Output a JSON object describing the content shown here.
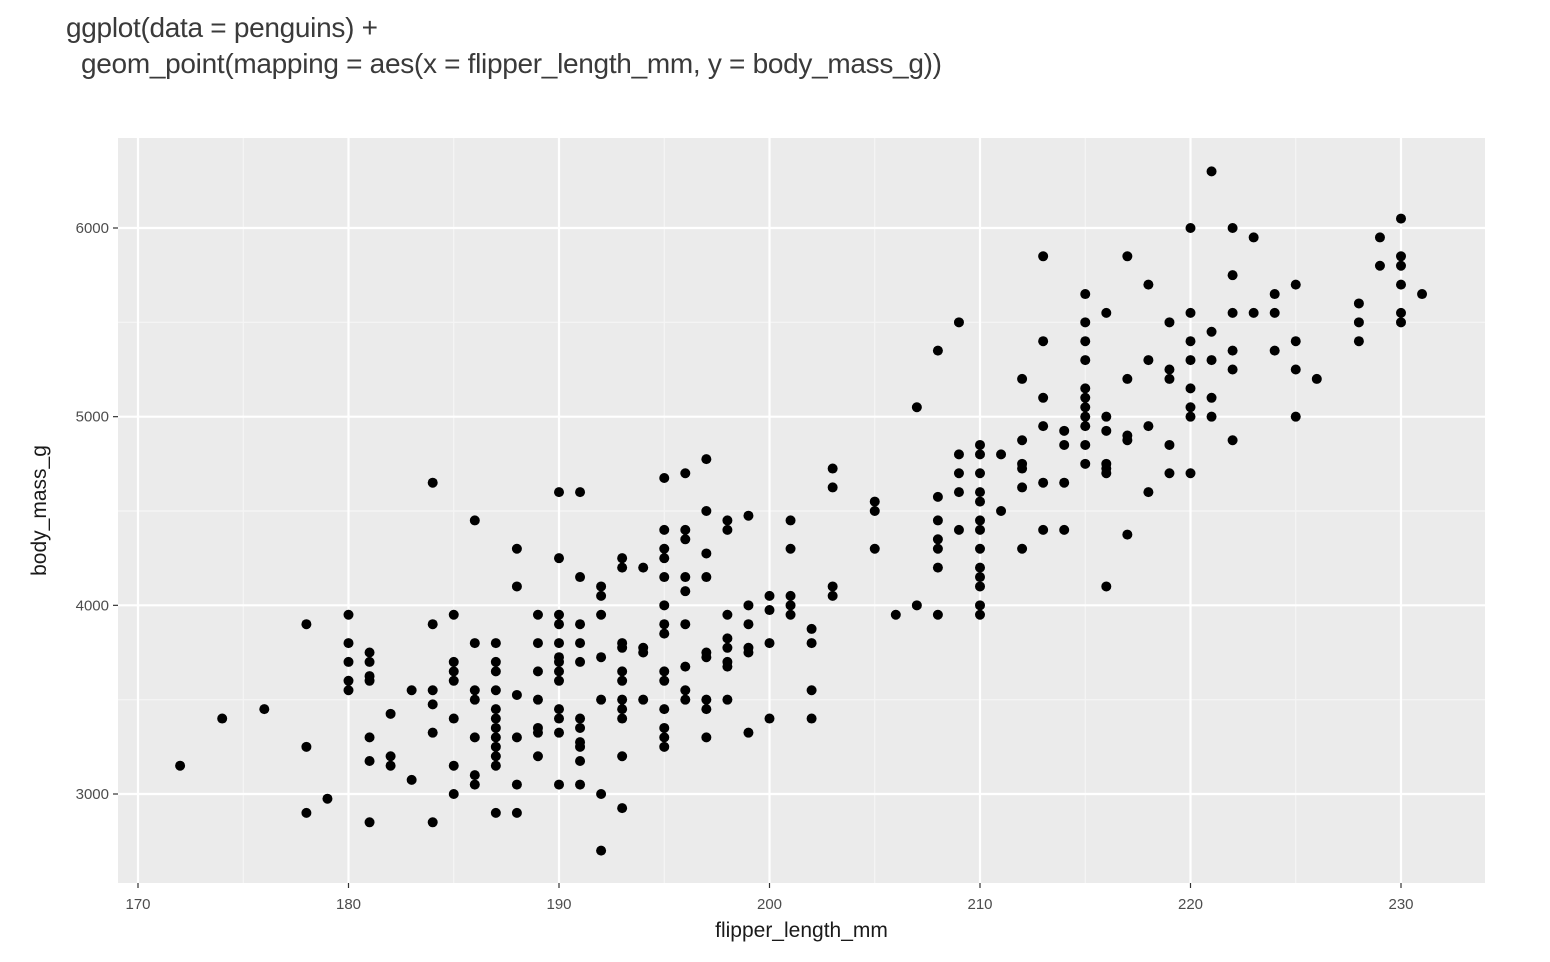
{
  "code": {
    "line1": "ggplot(data = penguins) +",
    "line2": "geom_point(mapping = aes(x = flipper_length_mm, y = body_mass_g))"
  },
  "colors": {
    "panel_background": "#ebebeb",
    "grid_major": "#ffffff",
    "grid_minor": "#f5f5f5",
    "point": "#000000"
  },
  "chart_data": {
    "type": "scatter",
    "title": "",
    "xlabel": "flipper_length_mm",
    "ylabel": "body_mass_g",
    "xlim": [
      169,
      234
    ],
    "ylim": [
      2530,
      6500
    ],
    "xticks": [
      170,
      180,
      190,
      200,
      210,
      220,
      230
    ],
    "yticks": [
      3000,
      4000,
      5000,
      6000
    ],
    "x_tick_labels": [
      "170",
      "180",
      "190",
      "200",
      "210",
      "220",
      "230"
    ],
    "y_tick_labels": [
      "3000",
      "4000",
      "5000",
      "6000"
    ],
    "grid": true,
    "points": [
      [
        172,
        3150
      ],
      [
        174,
        3400
      ],
      [
        176,
        3450
      ],
      [
        178,
        3900
      ],
      [
        178,
        3250
      ],
      [
        178,
        2900
      ],
      [
        179,
        2975
      ],
      [
        180,
        3950
      ],
      [
        180,
        3800
      ],
      [
        180,
        3700
      ],
      [
        180,
        3600
      ],
      [
        180,
        3550
      ],
      [
        181,
        3750
      ],
      [
        181,
        3700
      ],
      [
        181,
        3625
      ],
      [
        181,
        3600
      ],
      [
        181,
        3300
      ],
      [
        181,
        3175
      ],
      [
        181,
        2850
      ],
      [
        182,
        3425
      ],
      [
        182,
        3200
      ],
      [
        182,
        3150
      ],
      [
        183,
        3550
      ],
      [
        183,
        3075
      ],
      [
        184,
        4650
      ],
      [
        184,
        3900
      ],
      [
        184,
        3550
      ],
      [
        184,
        3475
      ],
      [
        184,
        3325
      ],
      [
        184,
        2850
      ],
      [
        185,
        3950
      ],
      [
        185,
        3700
      ],
      [
        185,
        3650
      ],
      [
        185,
        3600
      ],
      [
        185,
        3400
      ],
      [
        185,
        3150
      ],
      [
        185,
        3000
      ],
      [
        186,
        4450
      ],
      [
        186,
        3800
      ],
      [
        186,
        3550
      ],
      [
        186,
        3500
      ],
      [
        186,
        3300
      ],
      [
        186,
        3100
      ],
      [
        186,
        3050
      ],
      [
        187,
        3800
      ],
      [
        187,
        3700
      ],
      [
        187,
        3650
      ],
      [
        187,
        3550
      ],
      [
        187,
        3450
      ],
      [
        187,
        3400
      ],
      [
        187,
        3350
      ],
      [
        187,
        3300
      ],
      [
        187,
        3250
      ],
      [
        187,
        3200
      ],
      [
        187,
        3150
      ],
      [
        187,
        2900
      ],
      [
        188,
        4300
      ],
      [
        188,
        4100
      ],
      [
        188,
        3525
      ],
      [
        188,
        3300
      ],
      [
        188,
        3050
      ],
      [
        188,
        2900
      ],
      [
        189,
        3950
      ],
      [
        189,
        3800
      ],
      [
        189,
        3650
      ],
      [
        189,
        3500
      ],
      [
        189,
        3350
      ],
      [
        189,
        3325
      ],
      [
        189,
        3200
      ],
      [
        190,
        4600
      ],
      [
        190,
        4250
      ],
      [
        190,
        3950
      ],
      [
        190,
        3900
      ],
      [
        190,
        3800
      ],
      [
        190,
        3725
      ],
      [
        190,
        3700
      ],
      [
        190,
        3650
      ],
      [
        190,
        3600
      ],
      [
        190,
        3450
      ],
      [
        190,
        3400
      ],
      [
        190,
        3325
      ],
      [
        190,
        3050
      ],
      [
        191,
        4600
      ],
      [
        191,
        4150
      ],
      [
        191,
        3900
      ],
      [
        191,
        3800
      ],
      [
        191,
        3700
      ],
      [
        191,
        3400
      ],
      [
        191,
        3350
      ],
      [
        191,
        3275
      ],
      [
        191,
        3250
      ],
      [
        191,
        3175
      ],
      [
        191,
        3050
      ],
      [
        192,
        4100
      ],
      [
        192,
        4050
      ],
      [
        192,
        3950
      ],
      [
        192,
        3725
      ],
      [
        192,
        3500
      ],
      [
        192,
        3000
      ],
      [
        192,
        2700
      ],
      [
        193,
        4250
      ],
      [
        193,
        4200
      ],
      [
        193,
        3800
      ],
      [
        193,
        3775
      ],
      [
        193,
        3650
      ],
      [
        193,
        3600
      ],
      [
        193,
        3500
      ],
      [
        193,
        3450
      ],
      [
        193,
        3400
      ],
      [
        193,
        3200
      ],
      [
        193,
        2925
      ],
      [
        194,
        4200
      ],
      [
        194,
        3775
      ],
      [
        194,
        3750
      ],
      [
        194,
        3500
      ],
      [
        195,
        4675
      ],
      [
        195,
        4400
      ],
      [
        195,
        4300
      ],
      [
        195,
        4250
      ],
      [
        195,
        4150
      ],
      [
        195,
        4000
      ],
      [
        195,
        3900
      ],
      [
        195,
        3850
      ],
      [
        195,
        3650
      ],
      [
        195,
        3600
      ],
      [
        195,
        3450
      ],
      [
        195,
        3350
      ],
      [
        195,
        3300
      ],
      [
        195,
        3250
      ],
      [
        196,
        4700
      ],
      [
        196,
        4400
      ],
      [
        196,
        4350
      ],
      [
        196,
        4150
      ],
      [
        196,
        4075
      ],
      [
        196,
        3900
      ],
      [
        196,
        3675
      ],
      [
        196,
        3550
      ],
      [
        196,
        3500
      ],
      [
        197,
        4775
      ],
      [
        197,
        4500
      ],
      [
        197,
        4275
      ],
      [
        197,
        4150
      ],
      [
        197,
        3750
      ],
      [
        197,
        3725
      ],
      [
        197,
        3500
      ],
      [
        197,
        3450
      ],
      [
        197,
        3300
      ],
      [
        198,
        4450
      ],
      [
        198,
        4400
      ],
      [
        198,
        3950
      ],
      [
        198,
        3825
      ],
      [
        198,
        3775
      ],
      [
        198,
        3700
      ],
      [
        198,
        3675
      ],
      [
        198,
        3500
      ],
      [
        199,
        4475
      ],
      [
        199,
        4000
      ],
      [
        199,
        3900
      ],
      [
        199,
        3775
      ],
      [
        199,
        3750
      ],
      [
        199,
        3325
      ],
      [
        200,
        4050
      ],
      [
        200,
        3975
      ],
      [
        200,
        3800
      ],
      [
        200,
        3400
      ],
      [
        201,
        4450
      ],
      [
        201,
        4300
      ],
      [
        201,
        4050
      ],
      [
        201,
        4000
      ],
      [
        201,
        3950
      ],
      [
        202,
        3875
      ],
      [
        202,
        3800
      ],
      [
        202,
        3550
      ],
      [
        202,
        3400
      ],
      [
        203,
        4725
      ],
      [
        203,
        4625
      ],
      [
        203,
        4100
      ],
      [
        203,
        4050
      ],
      [
        205,
        4550
      ],
      [
        205,
        4500
      ],
      [
        205,
        4300
      ],
      [
        206,
        3950
      ],
      [
        207,
        5050
      ],
      [
        207,
        4000
      ],
      [
        208,
        5350
      ],
      [
        208,
        4575
      ],
      [
        208,
        4450
      ],
      [
        208,
        4350
      ],
      [
        208,
        4300
      ],
      [
        208,
        4200
      ],
      [
        208,
        3950
      ],
      [
        209,
        5500
      ],
      [
        209,
        4800
      ],
      [
        209,
        4700
      ],
      [
        209,
        4600
      ],
      [
        209,
        4400
      ],
      [
        210,
        4850
      ],
      [
        210,
        4800
      ],
      [
        210,
        4700
      ],
      [
        210,
        4600
      ],
      [
        210,
        4550
      ],
      [
        210,
        4450
      ],
      [
        210,
        4400
      ],
      [
        210,
        4300
      ],
      [
        210,
        4200
      ],
      [
        210,
        4150
      ],
      [
        210,
        4100
      ],
      [
        210,
        4000
      ],
      [
        210,
        3950
      ],
      [
        211,
        4800
      ],
      [
        211,
        4500
      ],
      [
        212,
        5200
      ],
      [
        212,
        4875
      ],
      [
        212,
        4750
      ],
      [
        212,
        4725
      ],
      [
        212,
        4625
      ],
      [
        212,
        4300
      ],
      [
        213,
        5850
      ],
      [
        213,
        5400
      ],
      [
        213,
        5100
      ],
      [
        213,
        4950
      ],
      [
        213,
        4650
      ],
      [
        213,
        4400
      ],
      [
        214,
        4925
      ],
      [
        214,
        4850
      ],
      [
        214,
        4650
      ],
      [
        214,
        4400
      ],
      [
        215,
        5650
      ],
      [
        215,
        5500
      ],
      [
        215,
        5400
      ],
      [
        215,
        5300
      ],
      [
        215,
        5150
      ],
      [
        215,
        5100
      ],
      [
        215,
        5050
      ],
      [
        215,
        5000
      ],
      [
        215,
        4950
      ],
      [
        215,
        4850
      ],
      [
        215,
        4750
      ],
      [
        216,
        5550
      ],
      [
        216,
        5000
      ],
      [
        216,
        4925
      ],
      [
        216,
        4750
      ],
      [
        216,
        4725
      ],
      [
        216,
        4700
      ],
      [
        216,
        4100
      ],
      [
        217,
        5850
      ],
      [
        217,
        5200
      ],
      [
        217,
        4900
      ],
      [
        217,
        4875
      ],
      [
        217,
        4375
      ],
      [
        218,
        5700
      ],
      [
        218,
        5300
      ],
      [
        218,
        4950
      ],
      [
        218,
        4600
      ],
      [
        219,
        5500
      ],
      [
        219,
        5250
      ],
      [
        219,
        5200
      ],
      [
        219,
        4850
      ],
      [
        219,
        4700
      ],
      [
        220,
        6000
      ],
      [
        220,
        5550
      ],
      [
        220,
        5400
      ],
      [
        220,
        5300
      ],
      [
        220,
        5150
      ],
      [
        220,
        5050
      ],
      [
        220,
        5000
      ],
      [
        220,
        4700
      ],
      [
        221,
        6300
      ],
      [
        221,
        5450
      ],
      [
        221,
        5300
      ],
      [
        221,
        5100
      ],
      [
        221,
        5000
      ],
      [
        222,
        6000
      ],
      [
        222,
        5750
      ],
      [
        222,
        5550
      ],
      [
        222,
        5350
      ],
      [
        222,
        5250
      ],
      [
        222,
        4875
      ],
      [
        223,
        5950
      ],
      [
        223,
        5550
      ],
      [
        224,
        5650
      ],
      [
        224,
        5550
      ],
      [
        224,
        5350
      ],
      [
        225,
        5700
      ],
      [
        225,
        5400
      ],
      [
        225,
        5250
      ],
      [
        225,
        5000
      ],
      [
        226,
        5200
      ],
      [
        228,
        5600
      ],
      [
        228,
        5500
      ],
      [
        228,
        5400
      ],
      [
        229,
        5950
      ],
      [
        229,
        5800
      ],
      [
        230,
        6050
      ],
      [
        230,
        5850
      ],
      [
        230,
        5800
      ],
      [
        230,
        5700
      ],
      [
        230,
        5550
      ],
      [
        230,
        5500
      ],
      [
        231,
        5650
      ]
    ]
  }
}
